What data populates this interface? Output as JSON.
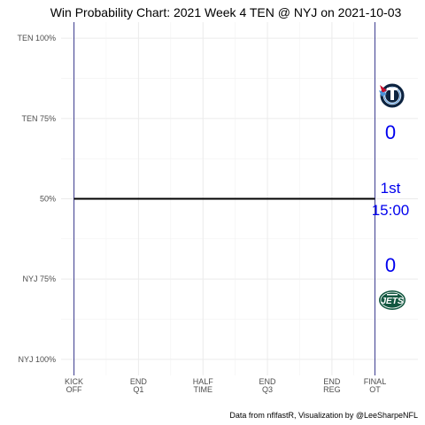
{
  "chart_data": {
    "type": "line",
    "title": "Win Probability Chart: 2021 Week 4 TEN @ NYJ on 2021-10-03",
    "caption": "Data from nflfastR, Visualization by @LeeSharpeNFL",
    "xlabel": "",
    "ylabel": "",
    "x_ticks": [
      {
        "label": [
          "KICK",
          "OFF"
        ],
        "value": 0
      },
      {
        "label": [
          "END",
          "Q1"
        ],
        "value": 15
      },
      {
        "label": [
          "HALF",
          "TIME"
        ],
        "value": 30
      },
      {
        "label": [
          "END",
          "Q3"
        ],
        "value": 45
      },
      {
        "label": [
          "END",
          "REG"
        ],
        "value": 60
      },
      {
        "label": [
          "FINAL",
          "OT"
        ],
        "value": 70
      }
    ],
    "xlim": [
      -3,
      80
    ],
    "y_ticks": [
      {
        "label": "TEN 100%",
        "value": 1.0
      },
      {
        "label": "TEN 75%",
        "value": 0.75
      },
      {
        "label": "50%",
        "value": 0.5
      },
      {
        "label": "NYJ 75%",
        "value": 0.25
      },
      {
        "label": "NYJ 100%",
        "value": 0.0
      }
    ],
    "ylim": [
      -0.05,
      1.05
    ],
    "grid": true,
    "vlines": [
      0,
      70
    ],
    "series": [
      {
        "x": [
          0,
          70
        ],
        "y": [
          0.5,
          0.5
        ]
      }
    ],
    "home_team": {
      "abbr": "TEN",
      "score": "0",
      "logo": "titans-logo"
    },
    "away_team": {
      "abbr": "NYJ",
      "score": "0",
      "logo": "jets-logo"
    },
    "game_clock": {
      "quarter": "1st",
      "time": "15:00"
    },
    "colors": {
      "line": "#000000",
      "vline": "#3b3b8f",
      "grid": "#ebebeb",
      "score": "#0000ee"
    }
  }
}
